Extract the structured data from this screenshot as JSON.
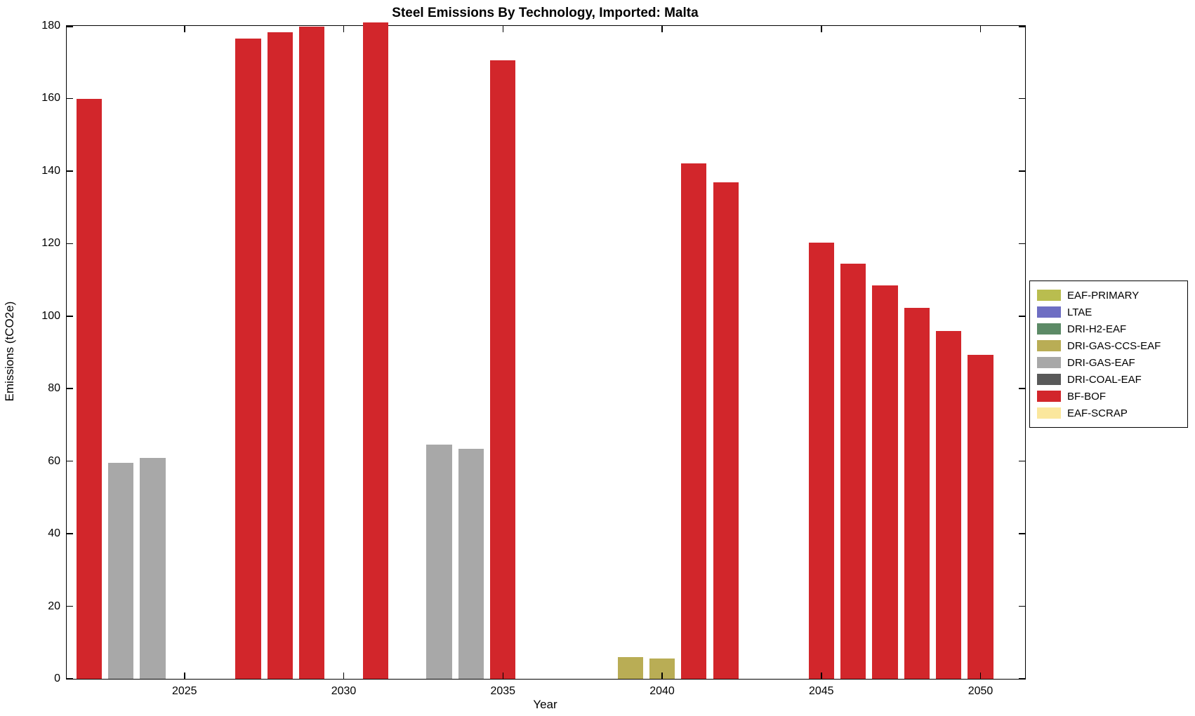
{
  "figure": {
    "background": "#ffffff"
  },
  "chart_data": {
    "type": "bar",
    "title": "Steel Emissions By Technology, Imported: Malta",
    "xlabel": "Year",
    "ylabel": "Emissions (tCO2e)",
    "xlim": [
      2021.3,
      2051.4
    ],
    "ylim": [
      0,
      180
    ],
    "x_ticks": [
      2025,
      2030,
      2035,
      2040,
      2045,
      2050
    ],
    "y_ticks": [
      0,
      20,
      40,
      60,
      80,
      100,
      120,
      140,
      160,
      180
    ],
    "grid": false,
    "legend_position": "right-outside",
    "bar_width_years": 0.8,
    "series_colors": {
      "EAF-PRIMARY": "#b9bd4f",
      "LTAE": "#6e6ec3",
      "DRI-H2-EAF": "#5c8a66",
      "DRI-GAS-CCS-EAF": "#b9ad55",
      "DRI-GAS-EAF": "#a8a8a8",
      "DRI-COAL-EAF": "#595959",
      "BF-BOF": "#d2262b",
      "EAF-SCRAP": "#fbe79d"
    },
    "legend": [
      "EAF-PRIMARY",
      "LTAE",
      "DRI-H2-EAF",
      "DRI-GAS-CCS-EAF",
      "DRI-GAS-EAF",
      "DRI-COAL-EAF",
      "BF-BOF",
      "EAF-SCRAP"
    ],
    "bars": [
      {
        "year": 2022,
        "series": "BF-BOF",
        "value": 159.8
      },
      {
        "year": 2023,
        "series": "DRI-GAS-EAF",
        "value": 59.5
      },
      {
        "year": 2024,
        "series": "DRI-GAS-EAF",
        "value": 61.0
      },
      {
        "year": 2027,
        "series": "BF-BOF",
        "value": 176.5
      },
      {
        "year": 2028,
        "series": "BF-BOF",
        "value": 178.3
      },
      {
        "year": 2029,
        "series": "BF-BOF",
        "value": 179.8
      },
      {
        "year": 2031,
        "series": "BF-BOF",
        "value": 181.0
      },
      {
        "year": 2033,
        "series": "DRI-GAS-EAF",
        "value": 64.6
      },
      {
        "year": 2034,
        "series": "DRI-GAS-EAF",
        "value": 63.4
      },
      {
        "year": 2035,
        "series": "BF-BOF",
        "value": 170.6
      },
      {
        "year": 2039,
        "series": "DRI-GAS-CCS-EAF",
        "value": 6.0
      },
      {
        "year": 2040,
        "series": "DRI-GAS-CCS-EAF",
        "value": 5.7
      },
      {
        "year": 2041,
        "series": "BF-BOF",
        "value": 142.1
      },
      {
        "year": 2042,
        "series": "BF-BOF",
        "value": 136.8
      },
      {
        "year": 2045,
        "series": "BF-BOF",
        "value": 120.3
      },
      {
        "year": 2046,
        "series": "BF-BOF",
        "value": 114.4
      },
      {
        "year": 2047,
        "series": "BF-BOF",
        "value": 108.4
      },
      {
        "year": 2048,
        "series": "BF-BOF",
        "value": 102.3
      },
      {
        "year": 2049,
        "series": "BF-BOF",
        "value": 95.9
      },
      {
        "year": 2050,
        "series": "BF-BOF",
        "value": 89.3
      }
    ]
  }
}
